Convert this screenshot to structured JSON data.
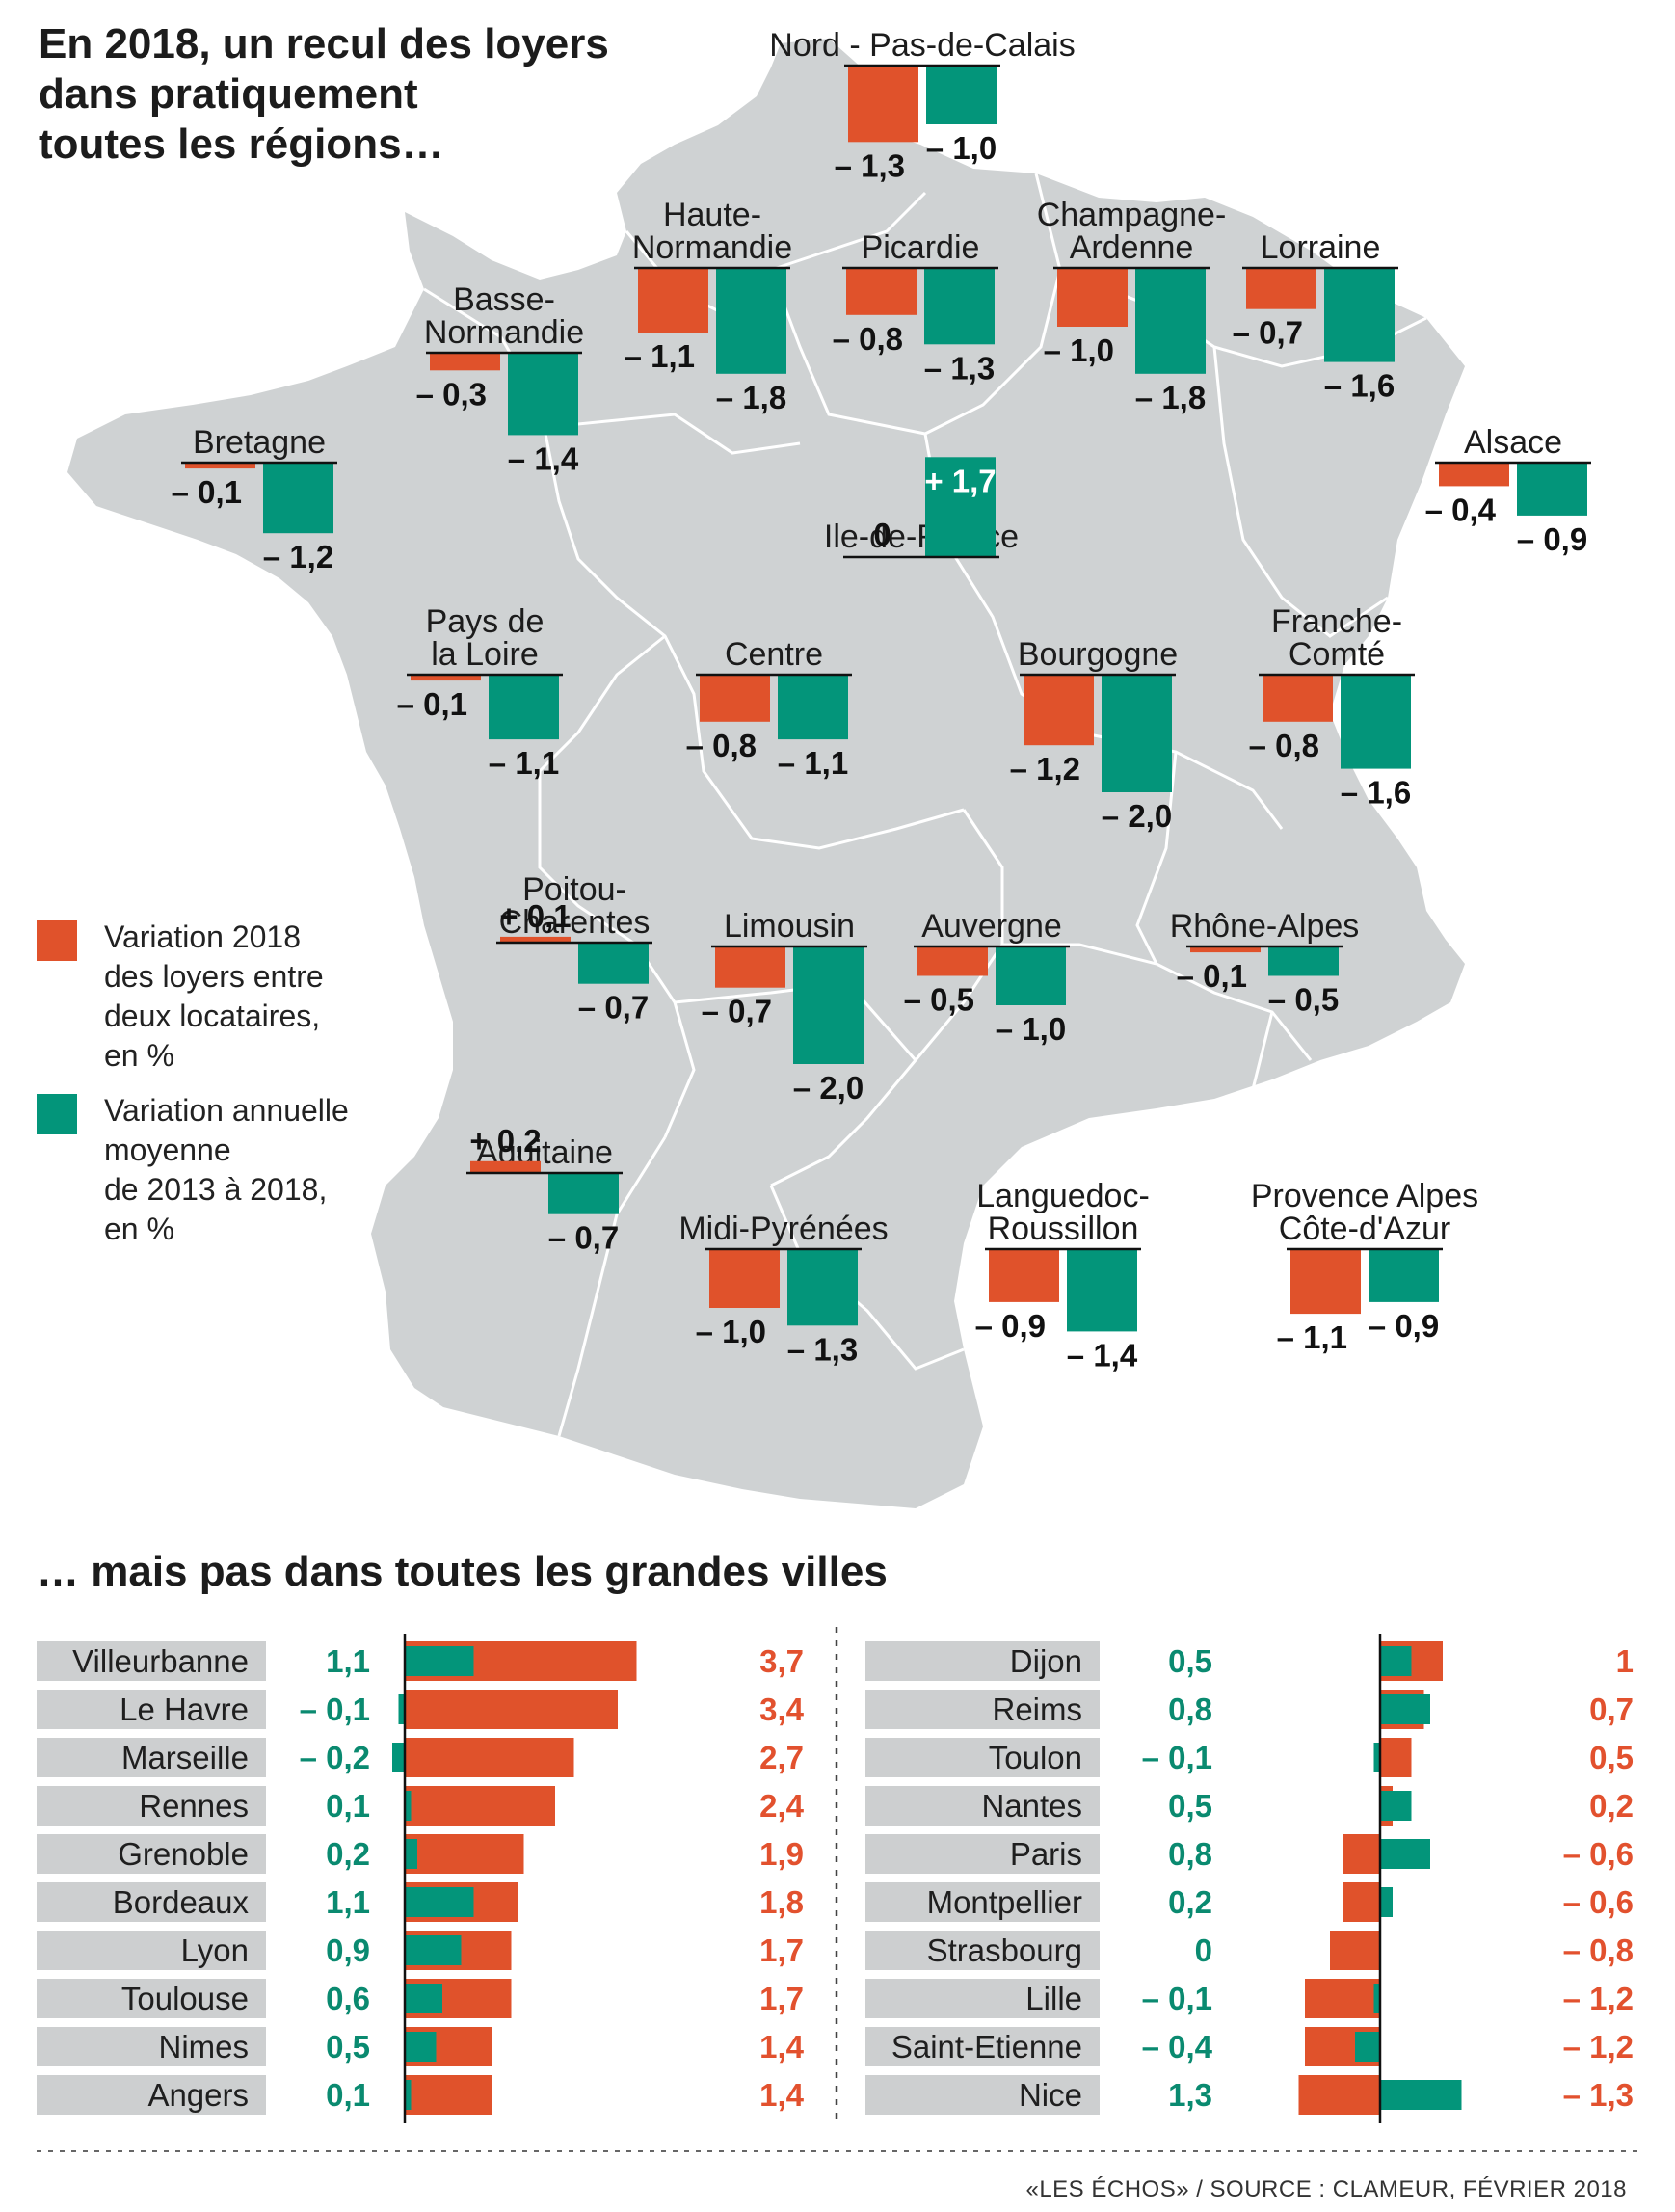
{
  "colors": {
    "orange": "#e0522b",
    "green": "#03957a",
    "map_fill": "#cfd2d3",
    "map_border": "#ffffff",
    "label_box": "#cdcfd0"
  },
  "title": {
    "lines": [
      "En 2018, un recul des loyers",
      "dans pratiquement",
      "toutes les régions…"
    ]
  },
  "legend": {
    "orange_lines": [
      "Variation 2018",
      "des loyers entre",
      "deux locataires,",
      "en %"
    ],
    "green_lines": [
      "Variation annuelle",
      "moyenne",
      "de 2013 à 2018,",
      "en %"
    ]
  },
  "chart_data": [
    {
      "type": "bar",
      "title": "En 2018, un recul des loyers dans pratiquement toutes les régions…",
      "series_names": [
        "Variation 2018 des loyers entre deux locataires, en %",
        "Variation annuelle moyenne de 2013 à 2018, en %"
      ],
      "regions": [
        {
          "name_lines": [
            "Nord - Pas-de-Calais"
          ],
          "v2018": -1.3,
          "v1318": -1.0,
          "v2018_label": "– 1,3",
          "v1318_label": "– 1,0"
        },
        {
          "name_lines": [
            "Haute-",
            "Normandie"
          ],
          "v2018": -1.1,
          "v1318": -1.8,
          "v2018_label": "– 1,1",
          "v1318_label": "– 1,8"
        },
        {
          "name_lines": [
            "Picardie"
          ],
          "v2018": -0.8,
          "v1318": -1.3,
          "v2018_label": "– 0,8",
          "v1318_label": "– 1,3"
        },
        {
          "name_lines": [
            "Champagne-",
            "Ardenne"
          ],
          "v2018": -1.0,
          "v1318": -1.8,
          "v2018_label": "– 1,0",
          "v1318_label": "– 1,8"
        },
        {
          "name_lines": [
            "Lorraine"
          ],
          "v2018": -0.7,
          "v1318": -1.6,
          "v2018_label": "– 0,7",
          "v1318_label": "– 1,6"
        },
        {
          "name_lines": [
            "Basse-",
            "Normandie"
          ],
          "v2018": -0.3,
          "v1318": -1.4,
          "v2018_label": "– 0,3",
          "v1318_label": "– 1,4"
        },
        {
          "name_lines": [
            "Bretagne"
          ],
          "v2018": -0.1,
          "v1318": -1.2,
          "v2018_label": "– 0,1",
          "v1318_label": "– 1,2"
        },
        {
          "name_lines": [
            "Alsace"
          ],
          "v2018": -0.4,
          "v1318": -0.9,
          "v2018_label": "– 0,4",
          "v1318_label": "– 0,9"
        },
        {
          "name_lines": [
            "Ile-de-France"
          ],
          "v2018": 0,
          "v1318": 1.7,
          "v2018_label": "0",
          "v1318_label": "+ 1,7"
        },
        {
          "name_lines": [
            "Pays de",
            "la Loire"
          ],
          "v2018": -0.1,
          "v1318": -1.1,
          "v2018_label": "– 0,1",
          "v1318_label": "– 1,1"
        },
        {
          "name_lines": [
            "Centre"
          ],
          "v2018": -0.8,
          "v1318": -1.1,
          "v2018_label": "– 0,8",
          "v1318_label": "– 1,1"
        },
        {
          "name_lines": [
            "Bourgogne"
          ],
          "v2018": -1.2,
          "v1318": -2.0,
          "v2018_label": "– 1,2",
          "v1318_label": "– 2,0"
        },
        {
          "name_lines": [
            "Franche-",
            "Comté"
          ],
          "v2018": -0.8,
          "v1318": -1.6,
          "v2018_label": "– 0,8",
          "v1318_label": "– 1,6"
        },
        {
          "name_lines": [
            "Poitou-",
            "Charentes"
          ],
          "v2018": 0.1,
          "v1318": -0.7,
          "v2018_label": "+ 0,1",
          "v1318_label": "– 0,7"
        },
        {
          "name_lines": [
            "Limousin"
          ],
          "v2018": -0.7,
          "v1318": -2.0,
          "v2018_label": "– 0,7",
          "v1318_label": "– 2,0"
        },
        {
          "name_lines": [
            "Auvergne"
          ],
          "v2018": -0.5,
          "v1318": -1.0,
          "v2018_label": "– 0,5",
          "v1318_label": "– 1,0"
        },
        {
          "name_lines": [
            "Rhône-Alpes"
          ],
          "v2018": -0.1,
          "v1318": -0.5,
          "v2018_label": "– 0,1",
          "v1318_label": "– 0,5"
        },
        {
          "name_lines": [
            "Aquitaine"
          ],
          "v2018": 0.2,
          "v1318": -0.7,
          "v2018_label": "+ 0,2",
          "v1318_label": "– 0,7"
        },
        {
          "name_lines": [
            "Midi-Pyrénées"
          ],
          "v2018": -1.0,
          "v1318": -1.3,
          "v2018_label": "– 1,0",
          "v1318_label": "– 1,3"
        },
        {
          "name_lines": [
            "Languedoc-",
            "Roussillon"
          ],
          "v2018": -0.9,
          "v1318": -1.4,
          "v2018_label": "– 0,9",
          "v1318_label": "– 1,4"
        },
        {
          "name_lines": [
            "Provence Alpes",
            "Côte-d'Azur"
          ],
          "v2018": -1.1,
          "v1318": -0.9,
          "v2018_label": "– 1,1",
          "v1318_label": "– 0,9"
        }
      ]
    },
    {
      "type": "bar",
      "title": "… mais pas dans toutes les grandes villes",
      "cities_left": [
        {
          "name": "Villeurbanne",
          "v1318": 1.1,
          "v2018": 3.7,
          "v1318_label": "1,1",
          "v2018_label": "3,7"
        },
        {
          "name": "Le Havre",
          "v1318": -0.1,
          "v2018": 3.4,
          "v1318_label": "– 0,1",
          "v2018_label": "3,4"
        },
        {
          "name": "Marseille",
          "v1318": -0.2,
          "v2018": 2.7,
          "v1318_label": "– 0,2",
          "v2018_label": "2,7"
        },
        {
          "name": "Rennes",
          "v1318": 0.1,
          "v2018": 2.4,
          "v1318_label": "0,1",
          "v2018_label": "2,4"
        },
        {
          "name": "Grenoble",
          "v1318": 0.2,
          "v2018": 1.9,
          "v1318_label": "0,2",
          "v2018_label": "1,9"
        },
        {
          "name": "Bordeaux",
          "v1318": 1.1,
          "v2018": 1.8,
          "v1318_label": "1,1",
          "v2018_label": "1,8"
        },
        {
          "name": "Lyon",
          "v1318": 0.9,
          "v2018": 1.7,
          "v1318_label": "0,9",
          "v2018_label": "1,7"
        },
        {
          "name": "Toulouse",
          "v1318": 0.6,
          "v2018": 1.7,
          "v1318_label": "0,6",
          "v2018_label": "1,7"
        },
        {
          "name": "Nimes",
          "v1318": 0.5,
          "v2018": 1.4,
          "v1318_label": "0,5",
          "v2018_label": "1,4"
        },
        {
          "name": "Angers",
          "v1318": 0.1,
          "v2018": 1.4,
          "v1318_label": "0,1",
          "v2018_label": "1,4"
        }
      ],
      "cities_right": [
        {
          "name": "Dijon",
          "v1318": 0.5,
          "v2018": 1.0,
          "v1318_label": "0,5",
          "v2018_label": "1"
        },
        {
          "name": "Reims",
          "v1318": 0.8,
          "v2018": 0.7,
          "v1318_label": "0,8",
          "v2018_label": "0,7"
        },
        {
          "name": "Toulon",
          "v1318": -0.1,
          "v2018": 0.5,
          "v1318_label": "– 0,1",
          "v2018_label": "0,5"
        },
        {
          "name": "Nantes",
          "v1318": 0.5,
          "v2018": 0.2,
          "v1318_label": "0,5",
          "v2018_label": "0,2"
        },
        {
          "name": "Paris",
          "v1318": 0.8,
          "v2018": -0.6,
          "v1318_label": "0,8",
          "v2018_label": "– 0,6"
        },
        {
          "name": "Montpellier",
          "v1318": 0.2,
          "v2018": -0.6,
          "v1318_label": "0,2",
          "v2018_label": "– 0,6"
        },
        {
          "name": "Strasbourg",
          "v1318": 0,
          "v2018": -0.8,
          "v1318_label": "0",
          "v2018_label": "– 0,8"
        },
        {
          "name": "Lille",
          "v1318": -0.1,
          "v2018": -1.2,
          "v1318_label": "– 0,1",
          "v2018_label": "– 1,2"
        },
        {
          "name": "Saint-Etienne",
          "v1318": -0.4,
          "v2018": -1.2,
          "v1318_label": "– 0,4",
          "v2018_label": "– 1,2"
        },
        {
          "name": "Nice",
          "v1318": 1.3,
          "v2018": -1.3,
          "v1318_label": "1,3",
          "v2018_label": "– 1,3"
        }
      ]
    }
  ],
  "source": "«LES ÉCHOS» / SOURCE : CLAMEUR, FÉVRIER 2018"
}
